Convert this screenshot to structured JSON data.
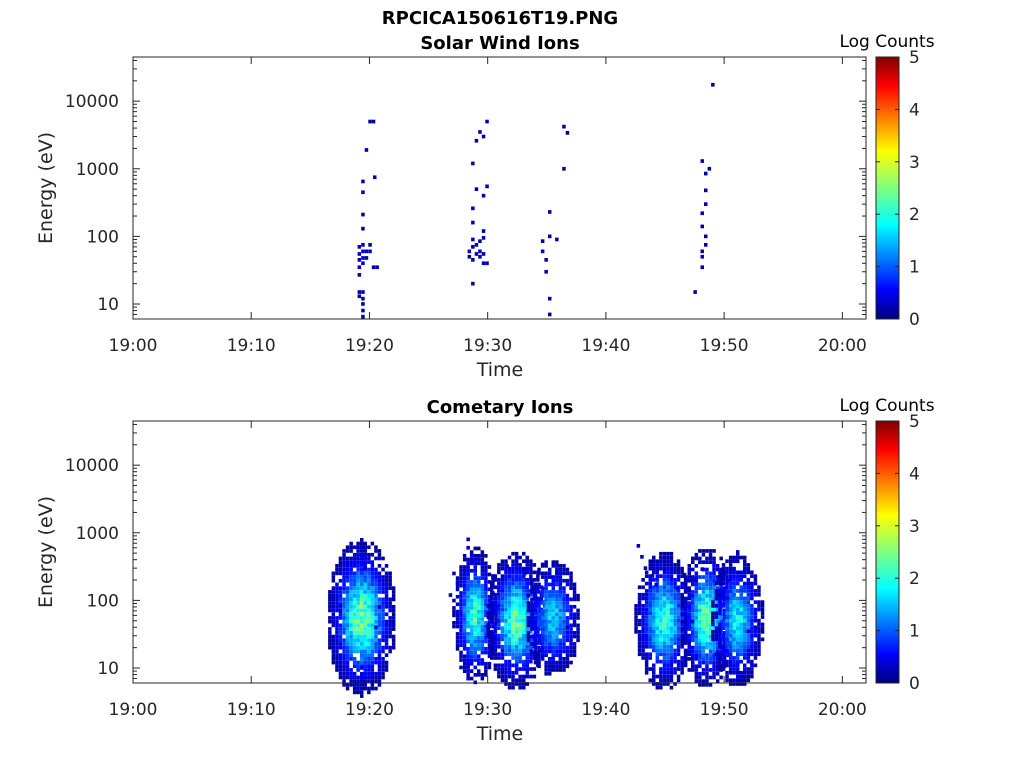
{
  "figure": {
    "title": "RPCICA150616T19.PNG"
  },
  "chart_data": [
    {
      "type": "heatmap",
      "title": "Solar Wind Ions",
      "xlabel": "Time",
      "ylabel": "Energy (eV)",
      "x_ticks": [
        "19:00",
        "19:10",
        "19:20",
        "19:30",
        "19:40",
        "19:50",
        "20:00"
      ],
      "xlim_minutes": [
        0,
        62
      ],
      "y_ticks": [
        "10",
        "100",
        "1000",
        "10000"
      ],
      "y_scale": "log",
      "ylim": [
        6,
        45000
      ],
      "colorbar": {
        "label": "Log Counts",
        "ticks": [
          "0",
          "1",
          "2",
          "3",
          "4",
          "5"
        ],
        "range": [
          0,
          5
        ]
      },
      "cells": [
        [
          19.0,
          70,
          0.3
        ],
        [
          19.0,
          55,
          0.4
        ],
        [
          19.0,
          45,
          0.3
        ],
        [
          19.0,
          35,
          0.3
        ],
        [
          19.0,
          27,
          0.2
        ],
        [
          19.0,
          15,
          0.3
        ],
        [
          19.0,
          13,
          0.2
        ],
        [
          19.3,
          75,
          0.3
        ],
        [
          19.3,
          60,
          0.4
        ],
        [
          19.3,
          48,
          0.3
        ],
        [
          19.3,
          40,
          0.4
        ],
        [
          19.3,
          15,
          0.3
        ],
        [
          19.3,
          12,
          0.2
        ],
        [
          19.3,
          10,
          0.2
        ],
        [
          19.3,
          8,
          0.2
        ],
        [
          19.3,
          6.5,
          0.2
        ],
        [
          19.6,
          60,
          0.3
        ],
        [
          19.6,
          48,
          0.2
        ],
        [
          19.9,
          75,
          0.2
        ],
        [
          19.9,
          60,
          0.3
        ],
        [
          19.3,
          210,
          0.2
        ],
        [
          19.3,
          650,
          0.2
        ],
        [
          19.3,
          450,
          0.2
        ],
        [
          19.3,
          130,
          0.2
        ],
        [
          19.6,
          1900,
          0.2
        ],
        [
          19.9,
          5000,
          0.2
        ],
        [
          20.2,
          5000,
          0.2
        ],
        [
          20.2,
          35,
          0.3
        ],
        [
          20.5,
          35,
          0.3
        ],
        [
          20.3,
          750,
          0.2
        ],
        [
          28.3,
          60,
          0.3
        ],
        [
          28.3,
          50,
          0.2
        ],
        [
          28.6,
          90,
          0.3
        ],
        [
          28.6,
          70,
          0.2
        ],
        [
          28.6,
          45,
          0.3
        ],
        [
          28.6,
          20,
          0.2
        ],
        [
          28.6,
          160,
          0.2
        ],
        [
          28.6,
          260,
          0.2
        ],
        [
          28.9,
          75,
          0.3
        ],
        [
          28.9,
          55,
          0.3
        ],
        [
          29.2,
          60,
          0.4
        ],
        [
          29.2,
          50,
          0.3
        ],
        [
          29.2,
          85,
          0.2
        ],
        [
          29.5,
          95,
          0.3
        ],
        [
          29.5,
          55,
          0.3
        ],
        [
          29.5,
          40,
          0.3
        ],
        [
          29.5,
          120,
          0.2
        ],
        [
          29.8,
          40,
          0.3
        ],
        [
          28.6,
          1200,
          0.2
        ],
        [
          28.9,
          500,
          0.2
        ],
        [
          29.2,
          3500,
          0.2
        ],
        [
          29.5,
          3000,
          0.2
        ],
        [
          29.8,
          5000,
          0.2
        ],
        [
          29.5,
          400,
          0.2
        ],
        [
          28.9,
          2600,
          0.2
        ],
        [
          29.8,
          550,
          0.2
        ],
        [
          34.5,
          60,
          0.3
        ],
        [
          34.5,
          85,
          0.2
        ],
        [
          34.8,
          45,
          0.2
        ],
        [
          34.8,
          30,
          0.2
        ],
        [
          35.1,
          12,
          0.2
        ],
        [
          35.1,
          7,
          0.2
        ],
        [
          35.1,
          100,
          0.2
        ],
        [
          35.1,
          230,
          0.2
        ],
        [
          35.7,
          90,
          0.2
        ],
        [
          36.3,
          4200,
          0.2
        ],
        [
          36.6,
          3400,
          0.2
        ],
        [
          36.3,
          1000,
          0.2
        ],
        [
          47.4,
          15,
          0.2
        ],
        [
          48.0,
          60,
          0.3
        ],
        [
          48.0,
          50,
          0.3
        ],
        [
          48.0,
          35,
          0.2
        ],
        [
          48.3,
          75,
          0.2
        ],
        [
          48.3,
          100,
          0.2
        ],
        [
          48.0,
          140,
          0.2
        ],
        [
          48.0,
          220,
          0.2
        ],
        [
          48.3,
          480,
          0.2
        ],
        [
          48.3,
          850,
          0.2
        ],
        [
          48.0,
          1300,
          0.2
        ],
        [
          48.6,
          1000,
          0.2
        ],
        [
          48.9,
          17500,
          0.2
        ],
        [
          48.3,
          300,
          0.2
        ]
      ]
    },
    {
      "type": "heatmap",
      "title": "Cometary Ions",
      "xlabel": "Time",
      "ylabel": "Energy (eV)",
      "x_ticks": [
        "19:00",
        "19:10",
        "19:20",
        "19:30",
        "19:40",
        "19:50",
        "20:00"
      ],
      "xlim_minutes": [
        0,
        62
      ],
      "y_ticks": [
        "10",
        "100",
        "1000",
        "10000"
      ],
      "y_scale": "log",
      "ylim": [
        6,
        45000
      ],
      "colorbar": {
        "label": "Log Counts",
        "ticks": [
          "0",
          "1",
          "2",
          "3",
          "4",
          "5"
        ],
        "range": [
          0,
          5
        ]
      },
      "bursts": [
        [
          19.2,
          55,
          1.4,
          0.55,
          2.4,
          30
        ],
        [
          28.8,
          60,
          0.9,
          0.5,
          2.1,
          30
        ],
        [
          32.3,
          50,
          1.2,
          0.5,
          2.3,
          30
        ],
        [
          35.4,
          55,
          1.2,
          0.45,
          1.6,
          22
        ],
        [
          44.8,
          50,
          1.2,
          0.5,
          2.1,
          28
        ],
        [
          48.4,
          55,
          1.1,
          0.5,
          2.3,
          28
        ],
        [
          51.0,
          50,
          1.1,
          0.5,
          1.8,
          26
        ]
      ],
      "cells": [
        [
          17.4,
          85,
          0.4
        ],
        [
          17.4,
          70,
          0.3
        ],
        [
          19.2,
          7,
          0.6
        ],
        [
          19.2,
          8,
          0.5
        ],
        [
          19.2,
          10,
          0.5
        ],
        [
          19.2,
          450,
          0.4
        ],
        [
          19.2,
          350,
          0.5
        ],
        [
          19.5,
          300,
          0.4
        ],
        [
          20.7,
          80,
          0.3
        ],
        [
          20.4,
          40,
          0.3
        ],
        [
          28.2,
          7,
          0.6
        ],
        [
          28.2,
          9,
          0.6
        ],
        [
          28.2,
          11,
          0.5
        ],
        [
          28.2,
          13,
          0.5
        ],
        [
          28.2,
          800,
          0.3
        ],
        [
          28.2,
          600,
          0.3
        ],
        [
          28.5,
          500,
          0.3
        ],
        [
          28.5,
          380,
          0.3
        ],
        [
          27.0,
          250,
          0.3
        ],
        [
          27.3,
          180,
          0.3
        ],
        [
          26.7,
          120,
          0.3
        ],
        [
          30.3,
          230,
          0.3
        ],
        [
          31.5,
          320,
          0.3
        ],
        [
          33.0,
          250,
          0.3
        ],
        [
          34.5,
          340,
          0.3
        ],
        [
          35.7,
          260,
          0.3
        ],
        [
          36.6,
          40,
          0.3
        ],
        [
          42.6,
          640,
          0.3
        ],
        [
          42.9,
          440,
          0.3
        ],
        [
          43.2,
          300,
          0.3
        ],
        [
          43.8,
          230,
          0.3
        ],
        [
          44.1,
          170,
          0.3
        ],
        [
          45.9,
          150,
          0.3
        ],
        [
          46.5,
          240,
          0.3
        ],
        [
          47.4,
          200,
          0.3
        ],
        [
          48.0,
          290,
          0.3
        ],
        [
          49.5,
          260,
          0.3
        ],
        [
          50.7,
          380,
          0.3
        ],
        [
          51.0,
          520,
          0.3
        ],
        [
          51.9,
          35,
          0.3
        ],
        [
          52.5,
          40,
          0.3
        ],
        [
          51.0,
          7,
          0.6
        ]
      ]
    }
  ]
}
